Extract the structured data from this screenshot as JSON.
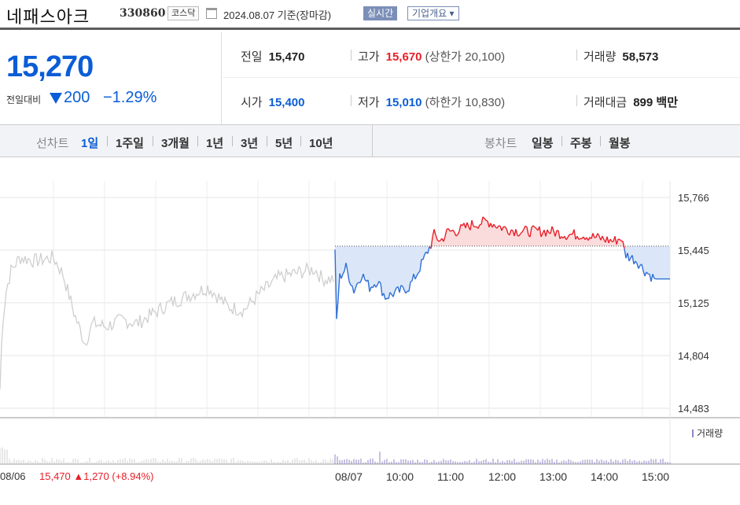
{
  "header": {
    "stock_name": "네패스아크",
    "stock_code": "330860",
    "market": "코스닥",
    "date": "2024.08.07  기준(장마감)",
    "realtime_label": "실시간",
    "overview_label": "기업개요 ▾"
  },
  "price": {
    "current": "15,270",
    "change_label": "전일대비",
    "change_value": "200",
    "change_rate": "−1.29%"
  },
  "info": {
    "prev_close_label": "전일",
    "prev_close": "15,470",
    "high_label": "고가",
    "high": "15,670",
    "upper_limit": "(상한가 20,100)",
    "volume_label": "거래량",
    "volume": "58,573",
    "open_label": "시가",
    "open": "15,400",
    "low_label": "저가",
    "low": "15,010",
    "lower_limit": "(하한가 10,830)",
    "amount_label": "거래대금",
    "amount": "899 백만"
  },
  "nav": {
    "line_chart_label": "선차트",
    "periods": [
      "1일",
      "1주일",
      "3개월",
      "1년",
      "3년",
      "5년",
      "10년"
    ],
    "active_period": "1일",
    "candle_label": "봉차트",
    "candles": [
      "일봉",
      "주봉",
      "월봉"
    ]
  },
  "chart_data": {
    "type": "line",
    "y_ticks": [
      "15,766",
      "15,445",
      "15,125",
      "14,804",
      "14,483"
    ],
    "ylim": [
      14483,
      15766
    ],
    "reference_price": 15470,
    "x_labels": [
      "08/07",
      "10:00",
      "11:00",
      "12:00",
      "13:00",
      "14:00",
      "15:00"
    ],
    "volume_legend": "거래량",
    "prev_day_info": {
      "date": "08/06",
      "text": "15,470 ▲1,270 (+8.94%)"
    },
    "colors": {
      "up": "#e8202a",
      "down": "#2f6fd6",
      "prev_day": "#cfcfcf",
      "volume": "#8e86c4"
    }
  }
}
